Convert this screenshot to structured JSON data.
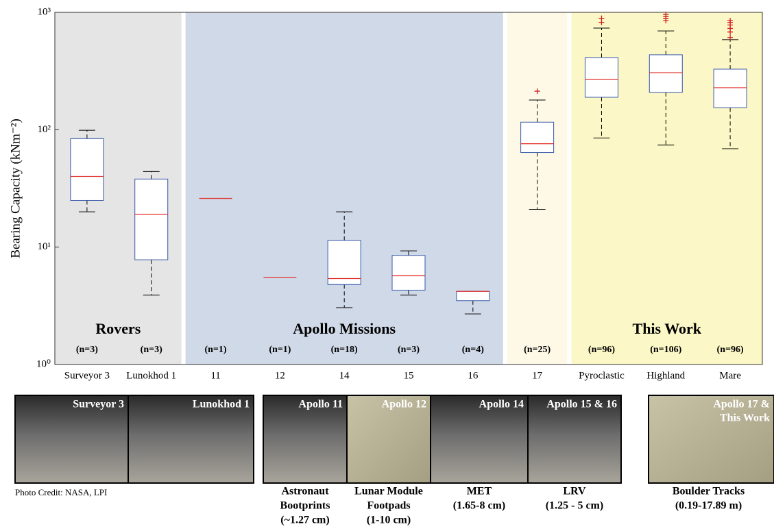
{
  "chart_data": {
    "type": "box",
    "ylabel": "Bearing Capacity (kNm⁻²)",
    "ylog": true,
    "ylim": [
      1,
      1000
    ],
    "yticks": [
      {
        "value": 1,
        "label": "10⁰"
      },
      {
        "value": 10,
        "label": "10¹"
      },
      {
        "value": 100,
        "label": "10²"
      },
      {
        "value": 1000,
        "label": "10³"
      }
    ],
    "categories": [
      "Surveyor 3",
      "Lunokhod 1",
      "11",
      "12",
      "14",
      "15",
      "16",
      "17",
      "Pyroclastic",
      "Highland",
      "Mare"
    ],
    "n_labels": [
      "(n=3)",
      "(n=3)",
      "(n=1)",
      "(n=1)",
      "(n=18)",
      "(n=3)",
      "(n=4)",
      "(n=25)",
      "(n=96)",
      "(n=106)",
      "(n=96)"
    ],
    "groups": [
      {
        "name": "Rovers",
        "span": 2,
        "color": "#e5e5e5"
      },
      {
        "name": "Apollo Missions",
        "span": 5,
        "color": "#d0d9e8"
      },
      {
        "name": null,
        "span": 1,
        "color": "#fdf9e6"
      },
      {
        "name": "This Work",
        "span": 3,
        "color": "#fbf7c6"
      }
    ],
    "box_color": "#3556a8",
    "median_color": "#e0302a",
    "outlier_color": "#d02020",
    "boxes": [
      {
        "low": 20,
        "q1": 25,
        "median": 40,
        "q3": 84,
        "high": 99,
        "outliers": []
      },
      {
        "low": 3.9,
        "q1": 7.8,
        "median": 19,
        "q3": 38,
        "high": 44,
        "outliers": []
      },
      {
        "median": 26
      },
      {
        "median": 5.5
      },
      {
        "low": 3.05,
        "q1": 4.8,
        "median": 5.4,
        "q3": 11.4,
        "high": 20,
        "outliers": []
      },
      {
        "low": 3.9,
        "q1": 4.3,
        "median": 5.7,
        "q3": 8.5,
        "high": 9.3,
        "outliers": []
      },
      {
        "low": 2.7,
        "q1": 3.5,
        "median": 4.2,
        "q3": 4.2,
        "high": 4.2,
        "outliers": []
      },
      {
        "low": 21,
        "q1": 64,
        "median": 76,
        "q3": 116,
        "high": 179,
        "outliers": [
          213
        ]
      },
      {
        "low": 85,
        "q1": 189,
        "median": 268,
        "q3": 412,
        "high": 734,
        "outliers": [
          820,
          890
        ]
      },
      {
        "low": 74,
        "q1": 208,
        "median": 306,
        "q3": 435,
        "high": 695,
        "outliers": [
          850,
          890,
          920,
          960
        ]
      },
      {
        "low": 69,
        "q1": 154,
        "median": 228,
        "q3": 328,
        "high": 585,
        "outliers": [
          610,
          680,
          730,
          780,
          820,
          850
        ]
      }
    ]
  },
  "photos": [
    {
      "label": [
        "Surveyor 3"
      ]
    },
    {
      "label": [
        "Lunokhod 1"
      ]
    },
    {
      "label": [
        "Apollo 11"
      ],
      "caption": [
        "Astronaut",
        "Bootprints",
        "(~1.27 cm)"
      ]
    },
    {
      "label": [
        "Apollo 12"
      ],
      "caption": [
        "Lunar Module",
        "Footpads",
        "(1-10 cm)"
      ]
    },
    {
      "label": [
        "Apollo 14"
      ],
      "caption": [
        "MET",
        "(1.65-8 cm)"
      ]
    },
    {
      "label": [
        "Apollo 15 & 16"
      ],
      "caption": [
        "LRV",
        "(1.25 - 5 cm)"
      ]
    },
    {
      "label": [
        "Apollo 17 &",
        "This Work"
      ],
      "caption": [
        "Boulder Tracks",
        "(0.19-17.89 m)"
      ]
    }
  ],
  "photo_credit": "Photo Credit: NASA, LPI"
}
